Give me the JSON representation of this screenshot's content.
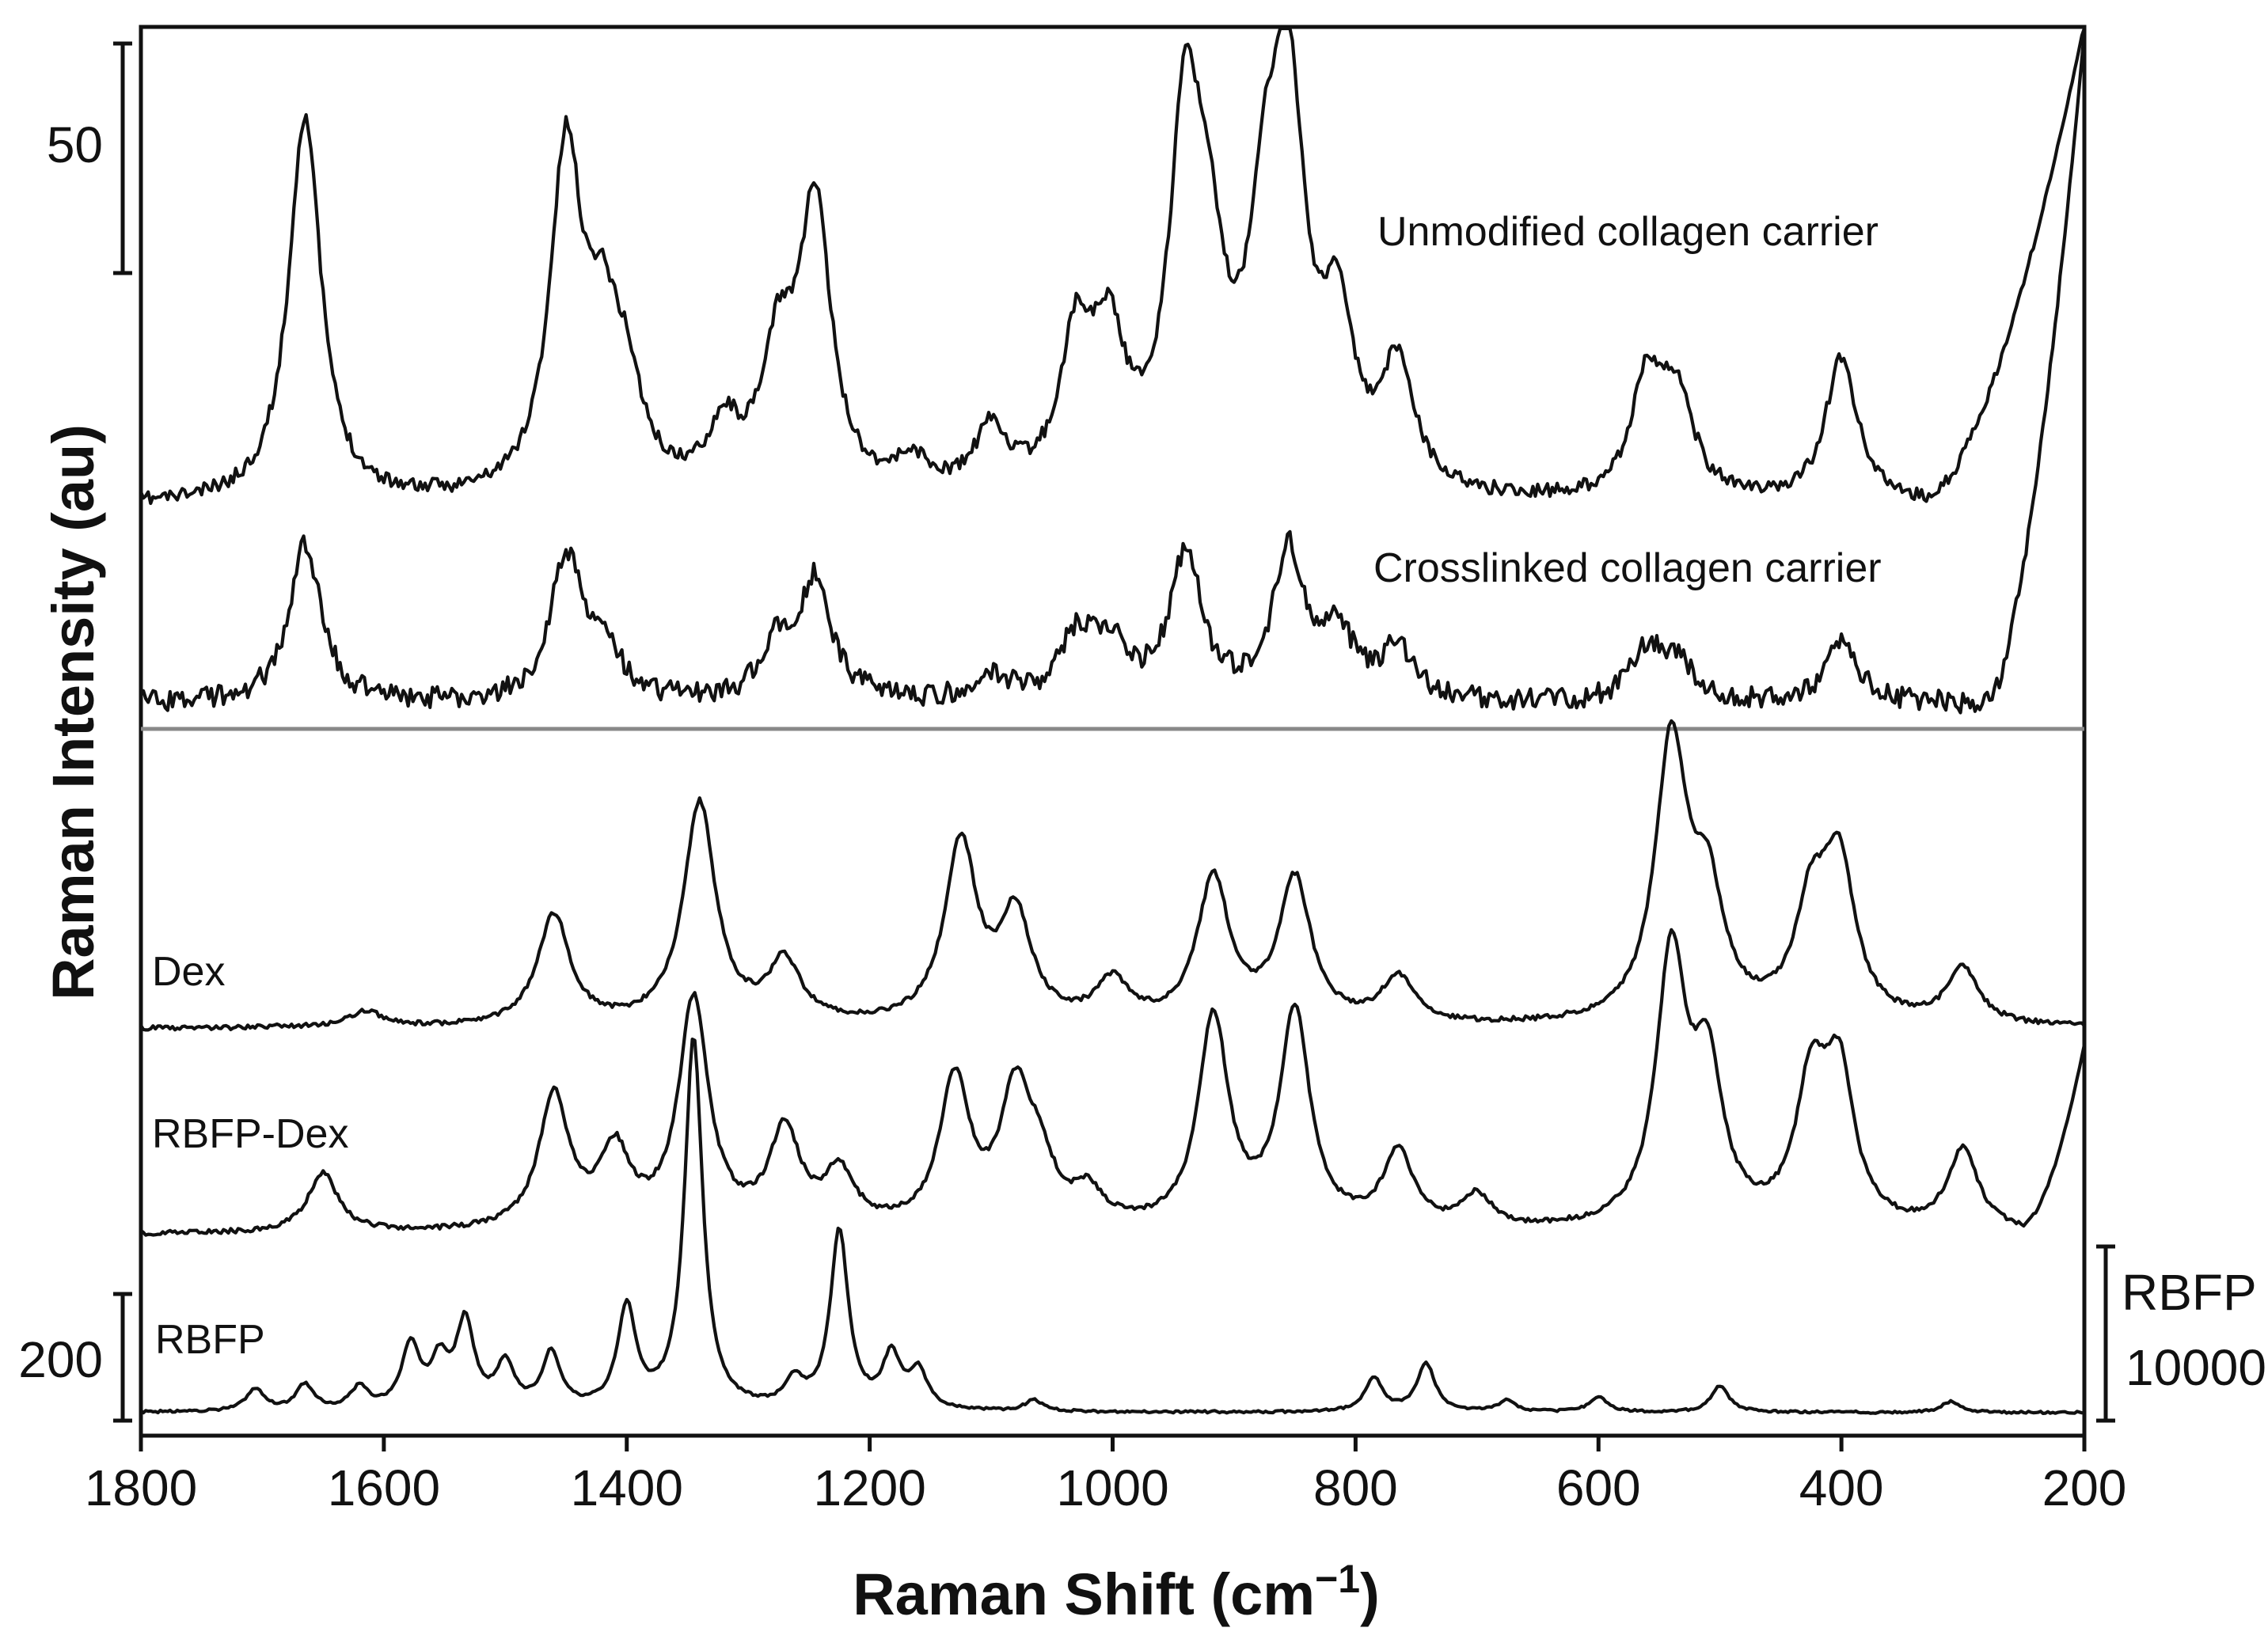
{
  "chart_data": {
    "type": "line",
    "xlabel_main": "Raman Shift (cm",
    "xlabel_sup": "−1",
    "xlabel_close": ")",
    "ylabel": "Raman Intensity (au)",
    "xlim": [
      1800,
      200
    ],
    "x_ticks": [
      "1800",
      "1600",
      "1400",
      "1200",
      "1000",
      "800",
      "600",
      "400",
      "200"
    ],
    "scale_bars": {
      "top": {
        "label": "50"
      },
      "bottom_left": {
        "label": "200"
      },
      "bottom_right": {
        "label_line1": "RBFP",
        "label_line2": "10000"
      }
    },
    "panels": [
      {
        "name": "collagen",
        "series": [
          {
            "name": "Unmodified collagen carrier",
            "peaks": [
              [
                1665,
                1.0
              ],
              [
                1450,
                0.87
              ],
              [
                1420,
                0.35
              ],
              [
                1400,
                0.22
              ],
              [
                1320,
                0.16
              ],
              [
                1245,
                0.73
              ],
              [
                1275,
                0.33
              ],
              [
                1165,
                0.08
              ],
              [
                1100,
                0.16
              ],
              [
                1030,
                0.37
              ],
              [
                1003,
                0.35
              ],
              [
                940,
                0.92
              ],
              [
                920,
                0.4
              ],
              [
                875,
                0.55
              ],
              [
                855,
                0.92
              ],
              [
                815,
                0.4
              ],
              [
                765,
                0.32
              ],
              [
                560,
                0.3
              ],
              [
                535,
                0.25
              ],
              [
                400,
                0.37
              ]
            ]
          },
          {
            "name": "Crosslinked collagen carrier",
            "peaks": [
              [
                1665,
                1.0
              ],
              [
                1450,
                0.87
              ],
              [
                1420,
                0.35
              ],
              [
                1245,
                0.73
              ],
              [
                1275,
                0.33
              ],
              [
                1100,
                0.16
              ],
              [
                1030,
                0.37
              ],
              [
                1003,
                0.35
              ],
              [
                940,
                0.92
              ],
              [
                855,
                0.92
              ],
              [
                815,
                0.4
              ],
              [
                765,
                0.32
              ],
              [
                560,
                0.3
              ],
              [
                535,
                0.25
              ],
              [
                400,
                0.37
              ]
            ]
          }
        ]
      },
      {
        "name": "rbfp",
        "series": [
          {
            "name": "Dex",
            "peaks": [
              [
                1615,
                0.06
              ],
              [
                1460,
                0.4
              ],
              [
                1340,
                0.8
              ],
              [
                1270,
                0.22
              ],
              [
                1125,
                0.65
              ],
              [
                1080,
                0.38
              ],
              [
                1000,
                0.15
              ],
              [
                917,
                0.52
              ],
              [
                850,
                0.52
              ],
              [
                765,
                0.17
              ],
              [
                540,
                1.0
              ],
              [
                510,
                0.42
              ],
              [
                425,
                0.38
              ],
              [
                402,
                0.55
              ],
              [
                300,
                0.2
              ]
            ]
          },
          {
            "name": "RBFP-Dex",
            "peaks": [
              [
                1650,
                0.22
              ],
              [
                1460,
                0.5
              ],
              [
                1410,
                0.28
              ],
              [
                1345,
                0.85
              ],
              [
                1270,
                0.36
              ],
              [
                1225,
                0.2
              ],
              [
                1130,
                0.55
              ],
              [
                1080,
                0.48
              ],
              [
                1060,
                0.2
              ],
              [
                1020,
                0.12
              ],
              [
                917,
                0.78
              ],
              [
                850,
                0.8
              ],
              [
                765,
                0.28
              ],
              [
                700,
                0.12
              ],
              [
                540,
                1.0
              ],
              [
                510,
                0.55
              ],
              [
                425,
                0.5
              ],
              [
                402,
                0.55
              ],
              [
                300,
                0.3
              ]
            ]
          },
          {
            "name": "RBFP",
            "peaks": [
              [
                1706,
                0.06
              ],
              [
                1665,
                0.07
              ],
              [
                1620,
                0.06
              ],
              [
                1578,
                0.17
              ],
              [
                1554,
                0.12
              ],
              [
                1533,
                0.23
              ],
              [
                1500,
                0.12
              ],
              [
                1462,
                0.15
              ],
              [
                1400,
                0.27
              ],
              [
                1345,
                1.0
              ],
              [
                1262,
                0.07
              ],
              [
                1225,
                0.48
              ],
              [
                1182,
                0.14
              ],
              [
                1160,
                0.1
              ],
              [
                1065,
                0.03
              ],
              [
                785,
                0.09
              ],
              [
                742,
                0.13
              ],
              [
                675,
                0.03
              ],
              [
                600,
                0.04
              ],
              [
                500,
                0.07
              ],
              [
                310,
                0.03
              ]
            ]
          }
        ]
      }
    ]
  }
}
